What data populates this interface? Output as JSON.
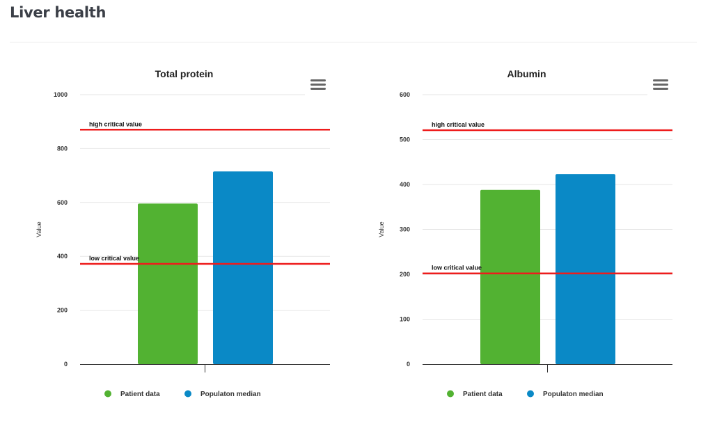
{
  "page": {
    "title": "Liver health"
  },
  "colors": {
    "patient": "#52b232",
    "population": "#0a89c6",
    "critical": "#ee1c1c",
    "grid": "#e6e6e6",
    "axis": "#333333"
  },
  "chart_data": [
    {
      "type": "bar",
      "title": "Total protein",
      "ylabel": "Value",
      "xlabel": "",
      "ylim": [
        0,
        1000
      ],
      "yticks": [
        0,
        200,
        400,
        600,
        800,
        1000
      ],
      "grid": true,
      "legend": "bottom",
      "menu_icon": "hamburger-menu-icon",
      "series": [
        {
          "name": "Patient data",
          "value": 596
        },
        {
          "name": "Populaton median",
          "value": 715
        }
      ],
      "plot_lines": [
        {
          "label": "high critical value",
          "value": 870
        },
        {
          "label": "low critical value",
          "value": 372
        }
      ]
    },
    {
      "type": "bar",
      "title": "Albumin",
      "ylabel": "Value",
      "xlabel": "",
      "ylim": [
        0,
        600
      ],
      "yticks": [
        0,
        100,
        200,
        300,
        400,
        500,
        600
      ],
      "grid": true,
      "legend": "bottom",
      "menu_icon": "hamburger-menu-icon",
      "series": [
        {
          "name": "Patient data",
          "value": 388
        },
        {
          "name": "Populaton median",
          "value": 423
        }
      ],
      "plot_lines": [
        {
          "label": "high critical value",
          "value": 521
        },
        {
          "label": "low critical value",
          "value": 202
        }
      ]
    }
  ]
}
